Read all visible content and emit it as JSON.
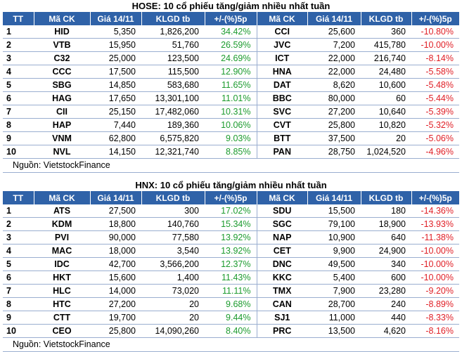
{
  "hose": {
    "title": "HOSE: 10 cổ phiếu tăng/giảm nhiều nhất tuần",
    "headers": [
      "TT",
      "Mã CK",
      "Giá 14/11",
      "KLGD tb",
      "+/-(%)5p",
      "Mã CK",
      "Giá 14/11",
      "KLGD tb",
      "+/-(%)5p"
    ],
    "rows": [
      {
        "tt": "1",
        "ck1": "HID",
        "p1": "5,350",
        "v1": "1,826,200",
        "c1": "34.42%",
        "ck2": "CCI",
        "p2": "25,600",
        "v2": "360",
        "c2": "-10.80%"
      },
      {
        "tt": "2",
        "ck1": "VTB",
        "p1": "15,950",
        "v1": "51,760",
        "c1": "26.59%",
        "ck2": "JVC",
        "p2": "7,200",
        "v2": "415,780",
        "c2": "-10.00%"
      },
      {
        "tt": "3",
        "ck1": "C32",
        "p1": "25,000",
        "v1": "123,500",
        "c1": "24.69%",
        "ck2": "ICT",
        "p2": "22,000",
        "v2": "216,740",
        "c2": "-8.14%"
      },
      {
        "tt": "4",
        "ck1": "CCC",
        "p1": "17,500",
        "v1": "115,500",
        "c1": "12.90%",
        "ck2": "HNA",
        "p2": "22,000",
        "v2": "24,480",
        "c2": "-5.58%"
      },
      {
        "tt": "5",
        "ck1": "SBG",
        "p1": "14,850",
        "v1": "583,680",
        "c1": "11.65%",
        "ck2": "DAT",
        "p2": "8,620",
        "v2": "10,600",
        "c2": "-5.48%"
      },
      {
        "tt": "6",
        "ck1": "HAG",
        "p1": "17,650",
        "v1": "13,301,100",
        "c1": "11.01%",
        "ck2": "BBC",
        "p2": "80,000",
        "v2": "60",
        "c2": "-5.44%"
      },
      {
        "tt": "7",
        "ck1": "CII",
        "p1": "25,150",
        "v1": "17,482,060",
        "c1": "10.31%",
        "ck2": "SVC",
        "p2": "27,200",
        "v2": "10,640",
        "c2": "-5.39%"
      },
      {
        "tt": "8",
        "ck1": "HAP",
        "p1": "7,440",
        "v1": "189,360",
        "c1": "10.06%",
        "ck2": "CVT",
        "p2": "25,800",
        "v2": "10,820",
        "c2": "-5.32%"
      },
      {
        "tt": "9",
        "ck1": "VNM",
        "p1": "62,800",
        "v1": "6,575,820",
        "c1": "9.03%",
        "ck2": "BTT",
        "p2": "37,500",
        "v2": "20",
        "c2": "-5.06%"
      },
      {
        "tt": "10",
        "ck1": "NVL",
        "p1": "14,150",
        "v1": "12,321,740",
        "c1": "8.85%",
        "ck2": "PAN",
        "p2": "28,750",
        "v2": "1,024,520",
        "c2": "-4.96%"
      }
    ],
    "source": "Nguồn: VietstockFinance"
  },
  "hnx": {
    "title": "HNX: 10 cổ phiếu tăng/giảm nhiều nhất tuần",
    "headers": [
      "TT",
      "Mã CK",
      "Giá 14/11",
      "KLGD tb",
      "+/-(%)5p",
      "Mã CK",
      "Giá 14/11",
      "KLGD tb",
      "+/-(%)5p"
    ],
    "rows": [
      {
        "tt": "1",
        "ck1": "ATS",
        "p1": "27,500",
        "v1": "300",
        "c1": "17.02%",
        "ck2": "SDU",
        "p2": "15,500",
        "v2": "180",
        "c2": "-14.36%"
      },
      {
        "tt": "2",
        "ck1": "KDM",
        "p1": "18,800",
        "v1": "140,760",
        "c1": "15.34%",
        "ck2": "SGC",
        "p2": "79,100",
        "v2": "18,900",
        "c2": "-13.93%"
      },
      {
        "tt": "3",
        "ck1": "PVI",
        "p1": "90,000",
        "v1": "77,580",
        "c1": "13.92%",
        "ck2": "NAP",
        "p2": "10,900",
        "v2": "640",
        "c2": "-11.38%"
      },
      {
        "tt": "4",
        "ck1": "MAC",
        "p1": "18,000",
        "v1": "3,540",
        "c1": "13.92%",
        "ck2": "CET",
        "p2": "9,900",
        "v2": "24,900",
        "c2": "-10.00%"
      },
      {
        "tt": "5",
        "ck1": "IDC",
        "p1": "42,700",
        "v1": "3,566,200",
        "c1": "12.37%",
        "ck2": "DNC",
        "p2": "49,500",
        "v2": "340",
        "c2": "-10.00%"
      },
      {
        "tt": "6",
        "ck1": "HKT",
        "p1": "15,600",
        "v1": "1,400",
        "c1": "11.43%",
        "ck2": "KKC",
        "p2": "5,400",
        "v2": "600",
        "c2": "-10.00%"
      },
      {
        "tt": "7",
        "ck1": "HLC",
        "p1": "14,000",
        "v1": "73,020",
        "c1": "11.11%",
        "ck2": "TMX",
        "p2": "7,900",
        "v2": "23,280",
        "c2": "-9.20%"
      },
      {
        "tt": "8",
        "ck1": "HTC",
        "p1": "27,200",
        "v1": "20",
        "c1": "9.68%",
        "ck2": "CAN",
        "p2": "28,700",
        "v2": "240",
        "c2": "-8.89%"
      },
      {
        "tt": "9",
        "ck1": "CTT",
        "p1": "19,700",
        "v1": "20",
        "c1": "9.44%",
        "ck2": "SJ1",
        "p2": "11,000",
        "v2": "440",
        "c2": "-8.33%"
      },
      {
        "tt": "10",
        "ck1": "CEO",
        "p1": "25,800",
        "v1": "14,090,260",
        "c1": "8.40%",
        "ck2": "PRC",
        "p2": "13,500",
        "v2": "4,620",
        "c2": "-8.16%"
      }
    ],
    "source": "Nguồn: VietstockFinance"
  },
  "colors": {
    "header_bg": "#2f62a8",
    "up": "#1c9b2e",
    "down": "#e01f26"
  }
}
